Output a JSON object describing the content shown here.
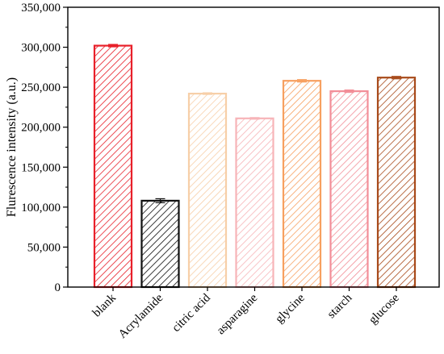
{
  "chart_data": {
    "type": "bar",
    "title": "",
    "xlabel": "",
    "ylabel": "Flurescence intensity (a.u.)",
    "categories": [
      "blank",
      "Acrylamide",
      "citric acid",
      "asparagine",
      "glycine",
      "starch",
      "glucose"
    ],
    "values": [
      302000,
      108000,
      242000,
      211000,
      258000,
      245000,
      262000
    ],
    "errors": [
      1500,
      2500,
      1000,
      1000,
      1500,
      1500,
      1500
    ],
    "ylim": [
      0,
      350000
    ],
    "yticks": [
      0,
      50000,
      100000,
      150000,
      200000,
      250000,
      300000,
      350000
    ],
    "ytick_labels": [
      "0",
      "50,000",
      "100,000",
      "150,000",
      "200,000",
      "250,000",
      "300,000",
      "350,000"
    ],
    "grid": false,
    "bar_fill": "hatched",
    "colors": [
      "#e8202a",
      "#111111",
      "#f7cfa8",
      "#f7b4b8",
      "#f7a060",
      "#f28e98",
      "#a84a1a"
    ]
  }
}
